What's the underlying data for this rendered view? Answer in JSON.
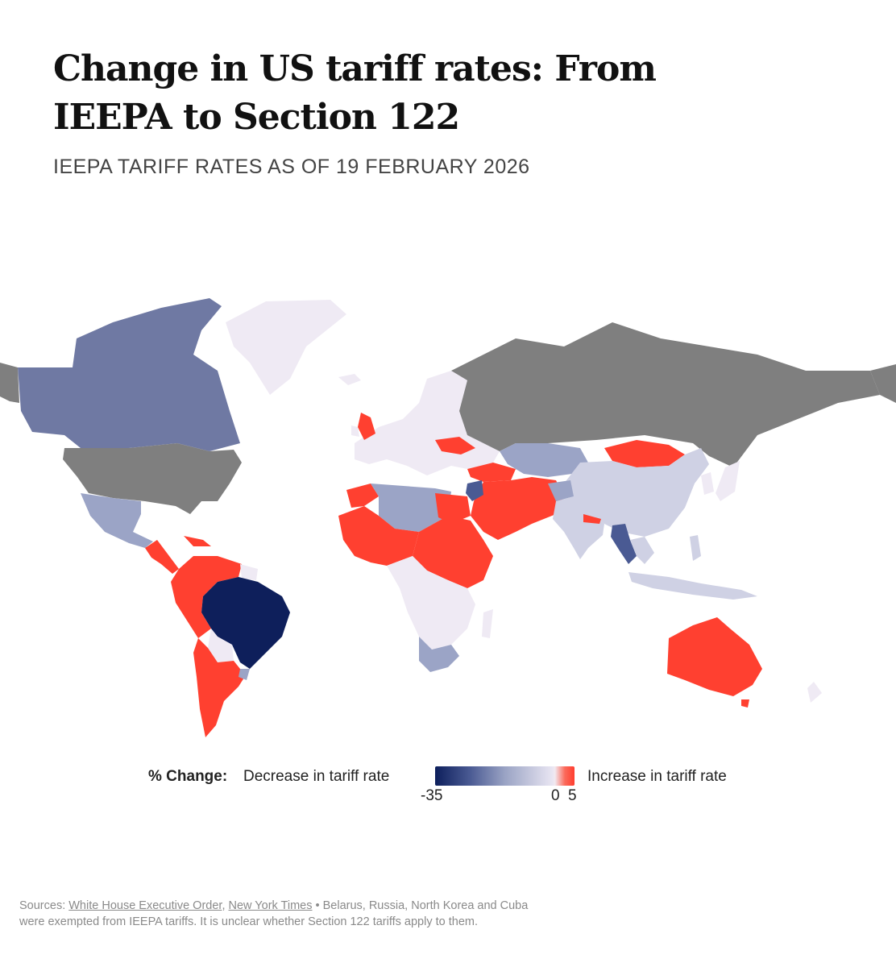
{
  "title": "Change in US tariff rates: From IEEPA to Section 122",
  "subtitle": "IEEPA TARIFF RATES AS OF 19 FEBRUARY 2026",
  "colors": {
    "exempt": "#7f7f7f",
    "strong_decrease": "#0e1f5b",
    "decrease": "#6f79a3",
    "mild_decrease": "#9ba4c6",
    "slight_decrease": "#cfd1e4",
    "no_change": "#efeaf4",
    "increase": "#ff4030"
  },
  "legend": {
    "title": "% Change:",
    "decrease_label": "Decrease in tariff rate",
    "increase_label": "Increase in tariff rate",
    "tick_min": "-35",
    "tick_zero": "0",
    "tick_max": "5"
  },
  "footer": {
    "prefix": "Sources: ",
    "source1": "White House Executive Order",
    "sep": ", ",
    "source2": "New York Times",
    "note": " • Belarus, Russia, North Korea and Cuba were exempted from IEEPA tariffs. It is unclear whether Section 122 tariffs apply to them."
  }
}
